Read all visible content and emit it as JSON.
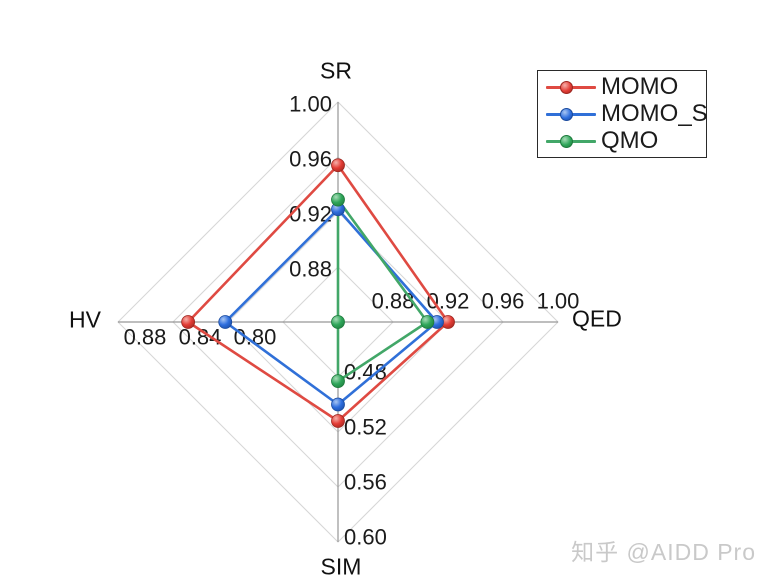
{
  "watermark": {
    "text": "知乎 @AIDD Pro"
  },
  "chart_data": {
    "type": "radar",
    "title": "",
    "grid": true,
    "legend_position": "top-right",
    "style": {
      "background": "#ffffff",
      "grid_color": "#d7d7d7",
      "axis_color": "#969696",
      "text_color": "#1b1b1b"
    },
    "layout": {
      "center": [
        338,
        322
      ],
      "radius": 220,
      "rings": 4
    },
    "axes": [
      {
        "id": "SR",
        "title": "SR",
        "direction": "up",
        "min": 0.84,
        "max": 1.0,
        "ticks": [
          {
            "label": "0.88",
            "value": 0.88
          },
          {
            "label": "0.92",
            "value": 0.92
          },
          {
            "label": "0.96",
            "value": 0.96
          },
          {
            "label": "1.00",
            "value": 1.0
          }
        ]
      },
      {
        "id": "QED",
        "title": "QED",
        "direction": "right",
        "min": 0.84,
        "max": 1.0,
        "ticks": [
          {
            "label": "0.88",
            "value": 0.88
          },
          {
            "label": "0.92",
            "value": 0.92
          },
          {
            "label": "0.96",
            "value": 0.96
          },
          {
            "label": "1.00",
            "value": 1.0
          }
        ]
      },
      {
        "id": "SIM",
        "title": "SIM",
        "direction": "down",
        "min": 0.44,
        "max": 0.6,
        "ticks": [
          {
            "label": "0.48",
            "value": 0.48
          },
          {
            "label": "0.52",
            "value": 0.52
          },
          {
            "label": "0.56",
            "value": 0.56
          },
          {
            "label": "0.60",
            "value": 0.6
          }
        ]
      },
      {
        "id": "HV",
        "title": "HV",
        "direction": "left",
        "min": 0.76,
        "max": 0.92,
        "ticks": [
          {
            "label": "0.80",
            "value": 0.8
          },
          {
            "label": "0.84",
            "value": 0.84
          },
          {
            "label": "0.88",
            "value": 0.88
          }
        ]
      }
    ],
    "series": [
      {
        "name": "MOMO",
        "color": "#df4a42",
        "marker": {
          "fill": "#e33c35",
          "edge": "#9c261f",
          "highlight": "#f6b0aa"
        },
        "values": {
          "SR": 0.954,
          "QED": 0.92,
          "SIM": 0.512,
          "HV": 0.869
        }
      },
      {
        "name": "MOMO_S",
        "color": "#3070d8",
        "marker": {
          "fill": "#2e6ede",
          "edge": "#1a4a9e",
          "highlight": "#a9c6f2"
        },
        "values": {
          "SR": 0.922,
          "QED": 0.912,
          "SIM": 0.5,
          "HV": 0.842
        }
      },
      {
        "name": "QMO",
        "color": "#42a768",
        "marker": {
          "fill": "#2fa65a",
          "edge": "#1e7a3c",
          "highlight": "#a8dcb8"
        },
        "values": {
          "SR": 0.929,
          "QED": 0.905,
          "SIM": 0.483,
          "HV": 0.76
        }
      }
    ]
  }
}
